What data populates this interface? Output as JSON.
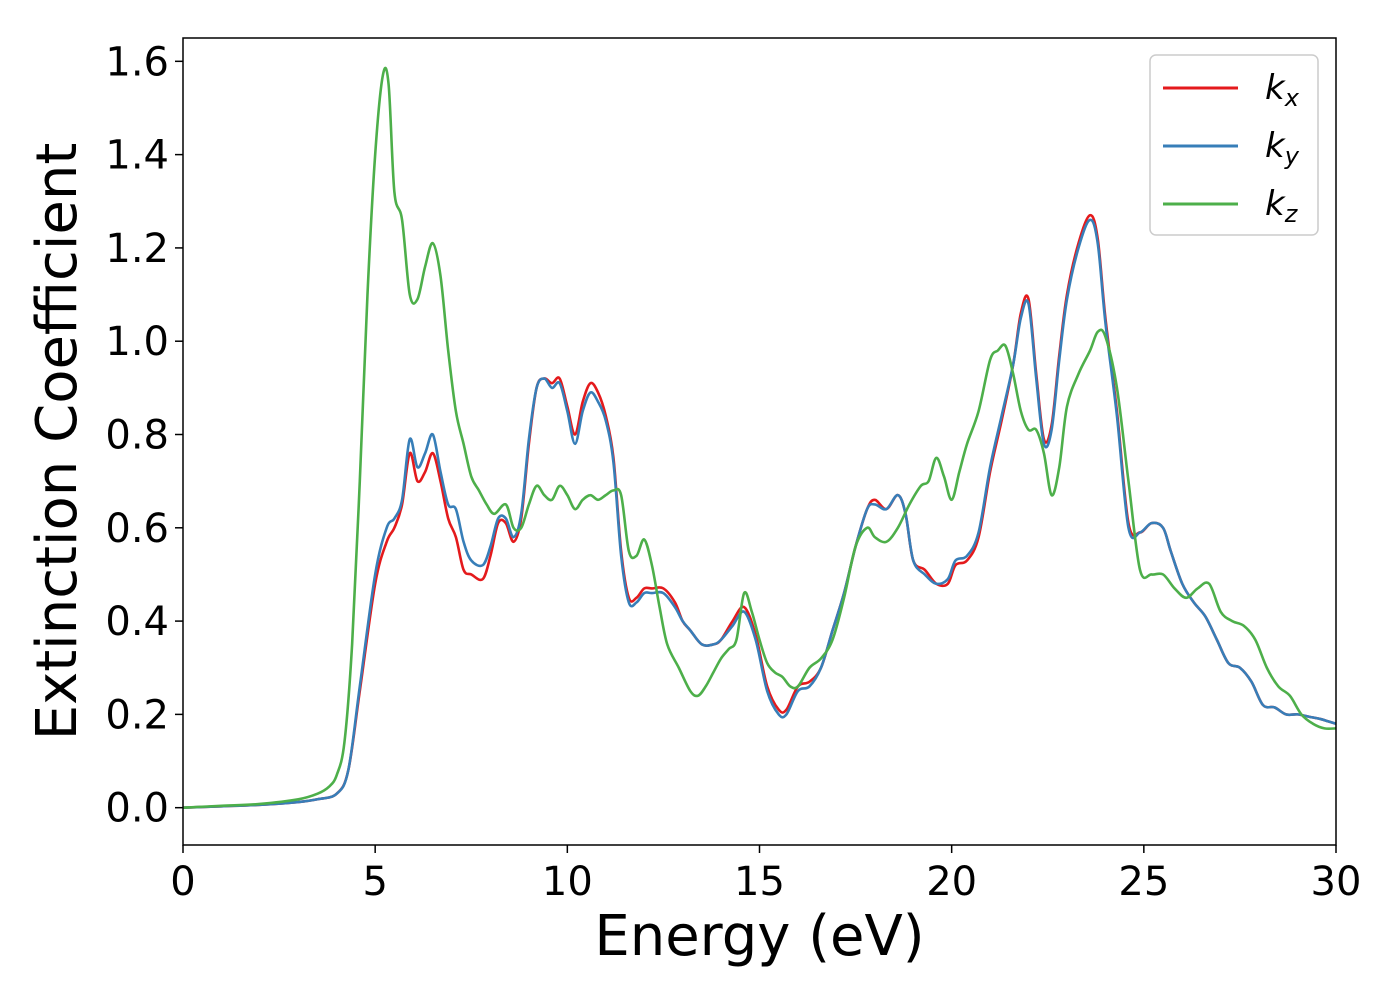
{
  "chart_data": {
    "type": "line",
    "xlabel": "Energy (eV)",
    "ylabel": "Extinction Coefficient",
    "xlim": [
      0,
      30
    ],
    "ylim": [
      -0.08,
      1.65
    ],
    "xticks": [
      0,
      5,
      10,
      15,
      20,
      25,
      30
    ],
    "xtick_labels": [
      "0",
      "5",
      "10",
      "15",
      "20",
      "25",
      "30"
    ],
    "yticks": [
      0.0,
      0.2,
      0.4,
      0.6,
      0.8,
      1.0,
      1.2,
      1.4,
      1.6
    ],
    "ytick_labels": [
      "0.0",
      "0.2",
      "0.4",
      "0.6",
      "0.8",
      "1.0",
      "1.2",
      "1.4",
      "1.6"
    ],
    "grid": false,
    "legend_position": "top-right",
    "series": [
      {
        "name": "k_x",
        "label_main": "k",
        "label_sub": "x",
        "color": "#e41a1c",
        "x": [
          0,
          1,
          2,
          3,
          3.5,
          4,
          4.3,
          4.6,
          5,
          5.3,
          5.5,
          5.7,
          5.9,
          6.1,
          6.3,
          6.5,
          6.7,
          6.9,
          7.1,
          7.3,
          7.5,
          7.8,
          8.0,
          8.2,
          8.4,
          8.6,
          8.8,
          9.0,
          9.2,
          9.4,
          9.6,
          9.8,
          10.0,
          10.2,
          10.4,
          10.6,
          10.8,
          11.0,
          11.2,
          11.4,
          11.6,
          11.8,
          12.0,
          12.2,
          12.5,
          12.8,
          13.0,
          13.2,
          13.5,
          13.8,
          14.0,
          14.3,
          14.6,
          14.9,
          15.2,
          15.5,
          15.7,
          16.0,
          16.3,
          16.6,
          16.9,
          17.2,
          17.5,
          17.8,
          18.0,
          18.3,
          18.6,
          18.8,
          19.0,
          19.3,
          19.6,
          19.9,
          20.1,
          20.4,
          20.7,
          21.0,
          21.3,
          21.6,
          21.8,
          22.0,
          22.2,
          22.4,
          22.6,
          22.8,
          23.0,
          23.3,
          23.6,
          23.8,
          24.0,
          24.3,
          24.6,
          24.9,
          25.2,
          25.5,
          25.7,
          26.0,
          26.3,
          26.6,
          26.9,
          27.2,
          27.5,
          27.8,
          28.1,
          28.4,
          28.7,
          29.0,
          29.3,
          29.6,
          29.8,
          30.0
        ],
        "y": [
          0.0,
          0.003,
          0.006,
          0.012,
          0.018,
          0.03,
          0.08,
          0.25,
          0.48,
          0.57,
          0.6,
          0.65,
          0.76,
          0.7,
          0.72,
          0.76,
          0.7,
          0.62,
          0.58,
          0.51,
          0.5,
          0.49,
          0.54,
          0.61,
          0.61,
          0.57,
          0.62,
          0.78,
          0.9,
          0.92,
          0.91,
          0.92,
          0.86,
          0.8,
          0.87,
          0.91,
          0.89,
          0.84,
          0.75,
          0.55,
          0.45,
          0.45,
          0.47,
          0.47,
          0.47,
          0.44,
          0.4,
          0.38,
          0.35,
          0.35,
          0.36,
          0.4,
          0.43,
          0.37,
          0.26,
          0.21,
          0.21,
          0.26,
          0.27,
          0.3,
          0.38,
          0.46,
          0.56,
          0.64,
          0.66,
          0.64,
          0.67,
          0.63,
          0.53,
          0.51,
          0.48,
          0.48,
          0.52,
          0.53,
          0.58,
          0.72,
          0.83,
          0.95,
          1.06,
          1.09,
          0.93,
          0.79,
          0.82,
          0.97,
          1.1,
          1.21,
          1.27,
          1.22,
          1.05,
          0.85,
          0.61,
          0.59,
          0.61,
          0.6,
          0.55,
          0.48,
          0.44,
          0.41,
          0.36,
          0.31,
          0.3,
          0.27,
          0.22,
          0.215,
          0.2,
          0.2,
          0.195,
          0.19,
          0.185,
          0.18
        ]
      },
      {
        "name": "k_y",
        "label_main": "k",
        "label_sub": "y",
        "color": "#377eb8",
        "x": [
          0,
          1,
          2,
          3,
          3.5,
          4,
          4.3,
          4.6,
          5,
          5.3,
          5.5,
          5.7,
          5.9,
          6.1,
          6.3,
          6.5,
          6.7,
          6.9,
          7.1,
          7.3,
          7.5,
          7.8,
          8.0,
          8.2,
          8.4,
          8.6,
          8.8,
          9.0,
          9.2,
          9.4,
          9.6,
          9.8,
          10.0,
          10.2,
          10.4,
          10.6,
          10.8,
          11.0,
          11.2,
          11.4,
          11.6,
          11.8,
          12.0,
          12.2,
          12.5,
          12.8,
          13.0,
          13.2,
          13.5,
          13.8,
          14.0,
          14.3,
          14.6,
          14.9,
          15.2,
          15.5,
          15.7,
          16.0,
          16.3,
          16.6,
          16.9,
          17.2,
          17.5,
          17.8,
          18.0,
          18.3,
          18.6,
          18.8,
          19.0,
          19.3,
          19.6,
          19.9,
          20.1,
          20.4,
          20.7,
          21.0,
          21.3,
          21.6,
          21.8,
          22.0,
          22.2,
          22.4,
          22.6,
          22.8,
          23.0,
          23.3,
          23.6,
          23.8,
          24.0,
          24.3,
          24.6,
          24.9,
          25.2,
          25.5,
          25.7,
          26.0,
          26.3,
          26.6,
          26.9,
          27.2,
          27.5,
          27.8,
          28.1,
          28.4,
          28.7,
          29.0,
          29.3,
          29.6,
          29.8,
          30.0
        ],
        "y": [
          0.0,
          0.003,
          0.006,
          0.012,
          0.018,
          0.03,
          0.08,
          0.26,
          0.5,
          0.6,
          0.62,
          0.66,
          0.79,
          0.73,
          0.76,
          0.8,
          0.72,
          0.65,
          0.64,
          0.57,
          0.53,
          0.52,
          0.56,
          0.62,
          0.62,
          0.58,
          0.63,
          0.79,
          0.9,
          0.92,
          0.9,
          0.91,
          0.85,
          0.78,
          0.85,
          0.89,
          0.87,
          0.83,
          0.74,
          0.54,
          0.44,
          0.44,
          0.46,
          0.46,
          0.46,
          0.43,
          0.4,
          0.38,
          0.35,
          0.35,
          0.36,
          0.39,
          0.42,
          0.36,
          0.25,
          0.2,
          0.2,
          0.25,
          0.26,
          0.3,
          0.38,
          0.46,
          0.56,
          0.64,
          0.65,
          0.64,
          0.67,
          0.63,
          0.53,
          0.5,
          0.48,
          0.49,
          0.53,
          0.54,
          0.59,
          0.73,
          0.84,
          0.95,
          1.05,
          1.08,
          0.92,
          0.78,
          0.81,
          0.96,
          1.09,
          1.2,
          1.26,
          1.21,
          1.04,
          0.84,
          0.6,
          0.59,
          0.61,
          0.6,
          0.55,
          0.48,
          0.44,
          0.41,
          0.36,
          0.31,
          0.3,
          0.27,
          0.22,
          0.215,
          0.2,
          0.2,
          0.195,
          0.19,
          0.185,
          0.18
        ]
      },
      {
        "name": "k_z",
        "label_main": "k",
        "label_sub": "z",
        "color": "#4daf4a",
        "x": [
          0,
          1,
          2,
          3,
          3.5,
          3.8,
          4.0,
          4.2,
          4.4,
          4.6,
          4.8,
          5.0,
          5.2,
          5.35,
          5.5,
          5.7,
          5.9,
          6.1,
          6.3,
          6.5,
          6.7,
          6.9,
          7.1,
          7.3,
          7.5,
          7.7,
          7.9,
          8.1,
          8.4,
          8.6,
          8.8,
          9.0,
          9.2,
          9.4,
          9.6,
          9.8,
          10.0,
          10.2,
          10.4,
          10.6,
          10.8,
          11.0,
          11.2,
          11.4,
          11.6,
          11.8,
          12.0,
          12.2,
          12.4,
          12.6,
          12.9,
          13.2,
          13.4,
          13.6,
          13.8,
          14.0,
          14.2,
          14.4,
          14.6,
          14.8,
          15.0,
          15.2,
          15.4,
          15.6,
          15.8,
          16.0,
          16.3,
          16.6,
          16.9,
          17.2,
          17.5,
          17.8,
          18.0,
          18.3,
          18.6,
          18.9,
          19.2,
          19.4,
          19.6,
          19.8,
          20.0,
          20.2,
          20.4,
          20.7,
          21.0,
          21.2,
          21.4,
          21.6,
          21.8,
          22.0,
          22.2,
          22.4,
          22.6,
          22.8,
          23.0,
          23.3,
          23.6,
          23.8,
          24.0,
          24.3,
          24.6,
          24.9,
          25.2,
          25.5,
          25.8,
          26.1,
          26.4,
          26.7,
          27.0,
          27.3,
          27.6,
          27.9,
          28.2,
          28.5,
          28.8,
          29.1,
          29.4,
          29.7,
          30.0
        ],
        "y": [
          0.0,
          0.004,
          0.008,
          0.018,
          0.03,
          0.045,
          0.07,
          0.14,
          0.35,
          0.7,
          1.1,
          1.4,
          1.57,
          1.55,
          1.32,
          1.26,
          1.1,
          1.09,
          1.16,
          1.21,
          1.14,
          0.98,
          0.85,
          0.78,
          0.71,
          0.68,
          0.65,
          0.63,
          0.65,
          0.6,
          0.6,
          0.65,
          0.69,
          0.67,
          0.66,
          0.69,
          0.67,
          0.64,
          0.66,
          0.67,
          0.66,
          0.67,
          0.68,
          0.67,
          0.55,
          0.54,
          0.575,
          0.52,
          0.43,
          0.35,
          0.3,
          0.25,
          0.24,
          0.26,
          0.29,
          0.32,
          0.34,
          0.36,
          0.46,
          0.42,
          0.36,
          0.31,
          0.29,
          0.28,
          0.26,
          0.26,
          0.3,
          0.32,
          0.36,
          0.45,
          0.56,
          0.6,
          0.58,
          0.57,
          0.6,
          0.65,
          0.69,
          0.7,
          0.75,
          0.71,
          0.66,
          0.72,
          0.78,
          0.85,
          0.96,
          0.98,
          0.99,
          0.93,
          0.85,
          0.81,
          0.81,
          0.76,
          0.67,
          0.73,
          0.86,
          0.93,
          0.98,
          1.02,
          1.01,
          0.9,
          0.7,
          0.51,
          0.5,
          0.5,
          0.47,
          0.45,
          0.47,
          0.48,
          0.42,
          0.4,
          0.39,
          0.36,
          0.3,
          0.26,
          0.24,
          0.2,
          0.18,
          0.17,
          0.17
        ]
      }
    ]
  }
}
